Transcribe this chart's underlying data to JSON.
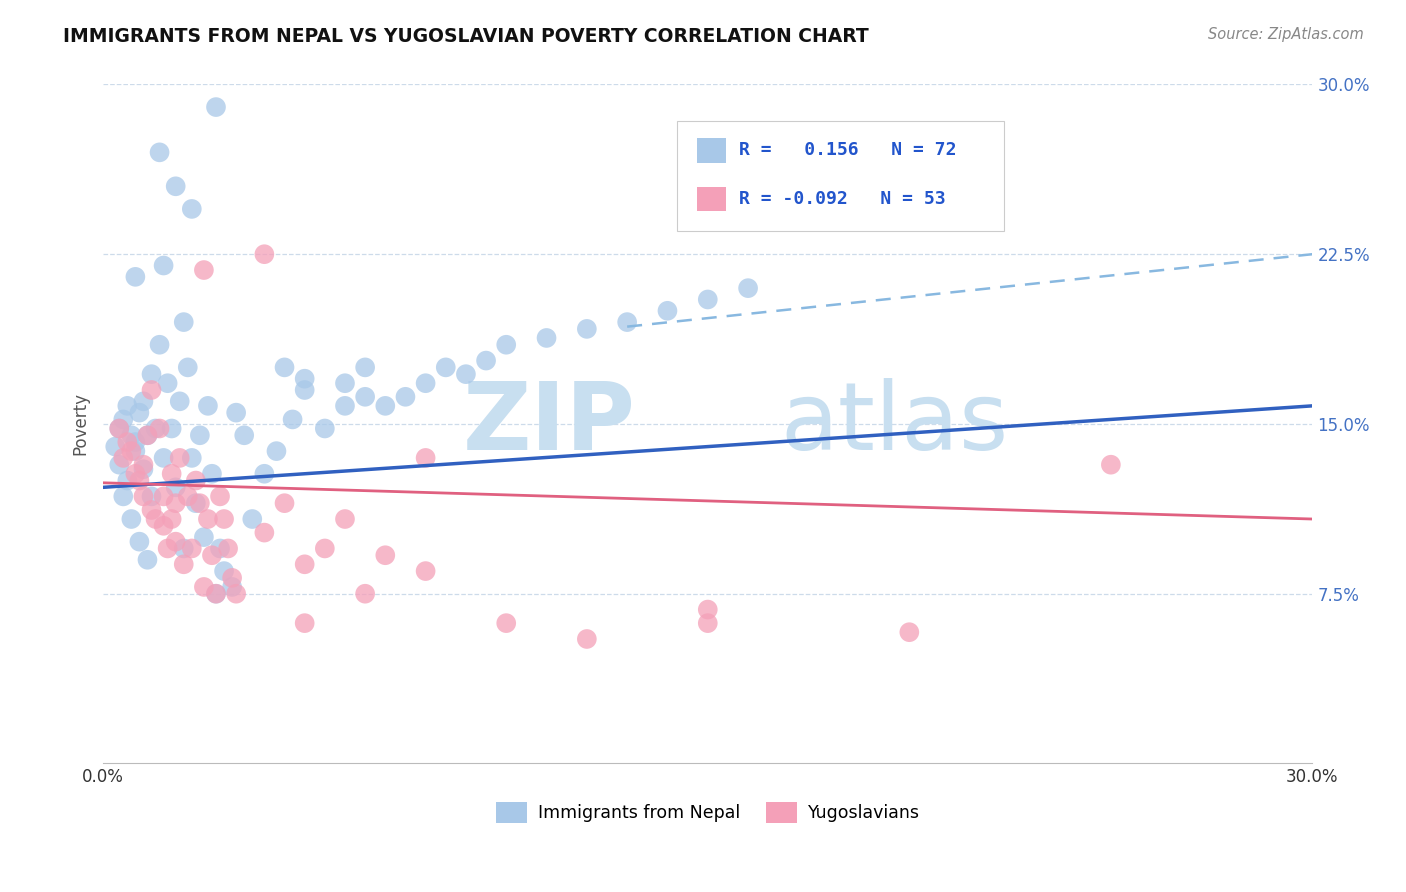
{
  "title": "IMMIGRANTS FROM NEPAL VS YUGOSLAVIAN POVERTY CORRELATION CHART",
  "source": "Source: ZipAtlas.com",
  "ylabel": "Poverty",
  "ytick_labels": [
    "7.5%",
    "15.0%",
    "22.5%",
    "30.0%"
  ],
  "ytick_values": [
    0.075,
    0.15,
    0.225,
    0.3
  ],
  "legend_bottom_label1": "Immigrants from Nepal",
  "legend_bottom_label2": "Yugoslavians",
  "color_nepal": "#a8c8e8",
  "color_yugo": "#f4a0b8",
  "color_nepal_line": "#3060c0",
  "color_yugo_line": "#e06080",
  "color_dashed_line": "#88b8e0",
  "watermark_zip": "ZIP",
  "watermark_atlas": "atlas",
  "watermark_color": "#c8dff0",
  "R_nepal": 0.156,
  "N_nepal": 72,
  "R_yugo": -0.092,
  "N_yugo": 53,
  "xlim": [
    0.0,
    0.3
  ],
  "ylim": [
    0.0,
    0.3
  ],
  "background_color": "#ffffff",
  "nepal_x": [
    0.003,
    0.004,
    0.004,
    0.005,
    0.005,
    0.006,
    0.006,
    0.007,
    0.007,
    0.008,
    0.008,
    0.009,
    0.009,
    0.01,
    0.01,
    0.011,
    0.011,
    0.012,
    0.012,
    0.013,
    0.014,
    0.015,
    0.016,
    0.017,
    0.018,
    0.019,
    0.02,
    0.021,
    0.022,
    0.023,
    0.024,
    0.025,
    0.026,
    0.027,
    0.028,
    0.029,
    0.03,
    0.032,
    0.033,
    0.035,
    0.037,
    0.04,
    0.043,
    0.047,
    0.05,
    0.055,
    0.06,
    0.065,
    0.014,
    0.018,
    0.022,
    0.028,
    0.015,
    0.02,
    0.008,
    0.045,
    0.05,
    0.06,
    0.065,
    0.07,
    0.075,
    0.08,
    0.085,
    0.09,
    0.095,
    0.1,
    0.11,
    0.12,
    0.13,
    0.14,
    0.15,
    0.16
  ],
  "nepal_y": [
    0.14,
    0.148,
    0.132,
    0.152,
    0.118,
    0.158,
    0.125,
    0.145,
    0.108,
    0.138,
    0.142,
    0.155,
    0.098,
    0.16,
    0.13,
    0.145,
    0.09,
    0.172,
    0.118,
    0.148,
    0.185,
    0.135,
    0.168,
    0.148,
    0.122,
    0.16,
    0.095,
    0.175,
    0.135,
    0.115,
    0.145,
    0.1,
    0.158,
    0.128,
    0.075,
    0.095,
    0.085,
    0.078,
    0.155,
    0.145,
    0.108,
    0.128,
    0.138,
    0.152,
    0.165,
    0.148,
    0.158,
    0.175,
    0.27,
    0.255,
    0.245,
    0.29,
    0.22,
    0.195,
    0.215,
    0.175,
    0.17,
    0.168,
    0.162,
    0.158,
    0.162,
    0.168,
    0.175,
    0.172,
    0.178,
    0.185,
    0.188,
    0.192,
    0.195,
    0.2,
    0.205,
    0.21
  ],
  "yugo_x": [
    0.004,
    0.005,
    0.006,
    0.007,
    0.008,
    0.009,
    0.01,
    0.01,
    0.011,
    0.012,
    0.012,
    0.013,
    0.014,
    0.015,
    0.015,
    0.016,
    0.017,
    0.017,
    0.018,
    0.018,
    0.019,
    0.02,
    0.021,
    0.022,
    0.023,
    0.024,
    0.025,
    0.026,
    0.027,
    0.028,
    0.029,
    0.03,
    0.031,
    0.032,
    0.033,
    0.04,
    0.045,
    0.05,
    0.055,
    0.06,
    0.065,
    0.07,
    0.08,
    0.1,
    0.12,
    0.15,
    0.04,
    0.025,
    0.08,
    0.15,
    0.2,
    0.25,
    0.05
  ],
  "yugo_y": [
    0.148,
    0.135,
    0.142,
    0.138,
    0.128,
    0.125,
    0.132,
    0.118,
    0.145,
    0.112,
    0.165,
    0.108,
    0.148,
    0.118,
    0.105,
    0.095,
    0.128,
    0.108,
    0.115,
    0.098,
    0.135,
    0.088,
    0.118,
    0.095,
    0.125,
    0.115,
    0.078,
    0.108,
    0.092,
    0.075,
    0.118,
    0.108,
    0.095,
    0.082,
    0.075,
    0.102,
    0.115,
    0.088,
    0.095,
    0.108,
    0.075,
    0.092,
    0.085,
    0.062,
    0.055,
    0.068,
    0.225,
    0.218,
    0.135,
    0.062,
    0.058,
    0.132,
    0.062
  ],
  "nepal_line_x0": 0.0,
  "nepal_line_y0": 0.122,
  "nepal_line_x1": 0.3,
  "nepal_line_y1": 0.158,
  "yugo_line_x0": 0.0,
  "yugo_line_y0": 0.124,
  "yugo_line_x1": 0.3,
  "yugo_line_y1": 0.108,
  "dash_line_x0": 0.13,
  "dash_line_y0": 0.193,
  "dash_line_x1": 0.3,
  "dash_line_y1": 0.225
}
